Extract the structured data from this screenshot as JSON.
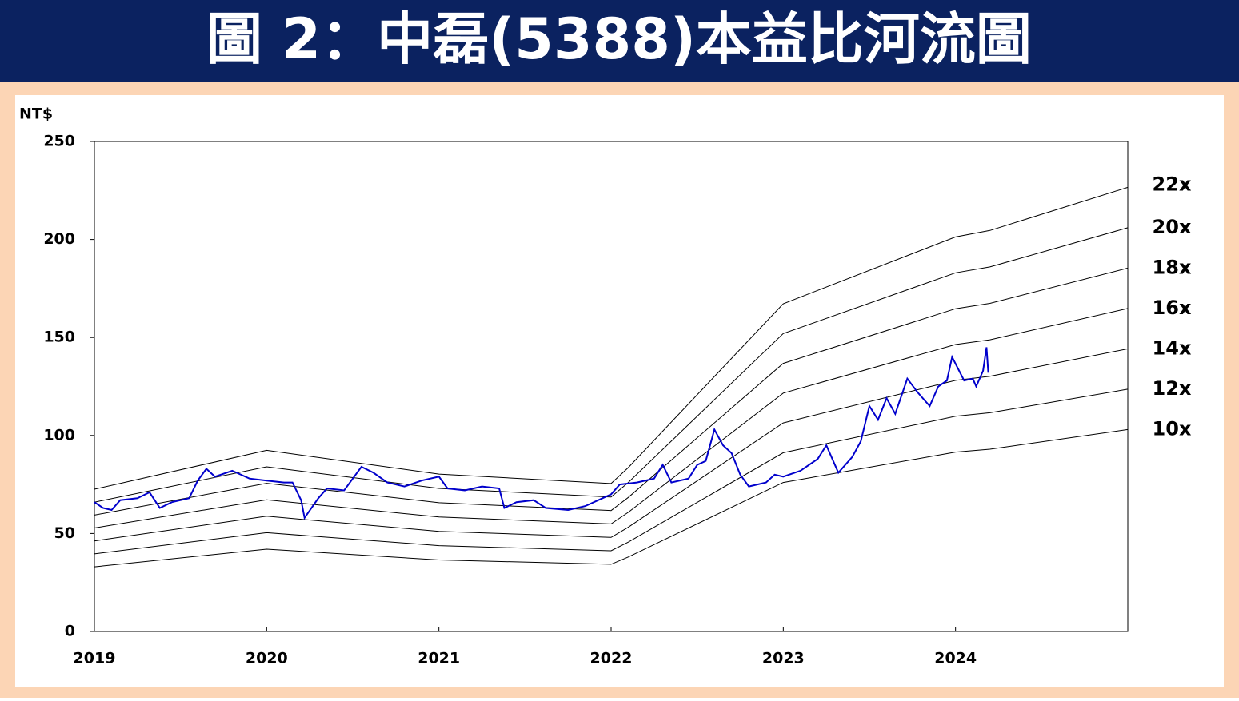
{
  "chart_data": {
    "type": "line",
    "title": "圖 2：中磊(5388)本益比河流圖",
    "y_label": "NT$",
    "xlim": [
      2019,
      2025
    ],
    "xticks": [
      2019,
      2020,
      2021,
      2022,
      2023,
      2024
    ],
    "ylim": [
      0,
      250
    ],
    "yticks": [
      0,
      50,
      100,
      150,
      200,
      250
    ],
    "series": [
      {
        "color": "#0000cc",
        "x": [
          2019.0,
          2019.05,
          2019.1,
          2019.15,
          2019.25,
          2019.32,
          2019.38,
          2019.45,
          2019.55,
          2019.6,
          2019.65,
          2019.7,
          2019.8,
          2019.9,
          2020.0,
          2020.1,
          2020.15,
          2020.2,
          2020.22,
          2020.3,
          2020.35,
          2020.45,
          2020.5,
          2020.55,
          2020.62,
          2020.7,
          2020.8,
          2020.9,
          2021.0,
          2021.05,
          2021.15,
          2021.25,
          2021.35,
          2021.38,
          2021.45,
          2021.55,
          2021.62,
          2021.75,
          2021.85,
          2021.95,
          2022.0,
          2022.05,
          2022.15,
          2022.25,
          2022.3,
          2022.35,
          2022.45,
          2022.5,
          2022.55,
          2022.6,
          2022.65,
          2022.7,
          2022.75,
          2022.8,
          2022.9,
          2022.95,
          2023.0,
          2023.1,
          2023.2,
          2023.25,
          2023.32,
          2023.4,
          2023.45,
          2023.5,
          2023.55,
          2023.6,
          2023.65,
          2023.72,
          2023.78,
          2023.85,
          2023.9,
          2023.95,
          2023.98,
          2024.05,
          2024.1,
          2024.12,
          2024.16,
          2024.18,
          2024.19
        ],
        "values": [
          66,
          63,
          62,
          67,
          68,
          71,
          63,
          66,
          68,
          77,
          83,
          79,
          82,
          78,
          77,
          76,
          76,
          67,
          58,
          68,
          73,
          72,
          78,
          84,
          81,
          76,
          74,
          77,
          79,
          73,
          72,
          74,
          73,
          63,
          66,
          67,
          63,
          62,
          64,
          68,
          70,
          75,
          76,
          78,
          85,
          76,
          78,
          85,
          87,
          103,
          95,
          91,
          80,
          74,
          76,
          80,
          79,
          82,
          88,
          95,
          81,
          89,
          97,
          115,
          108,
          119,
          111,
          129,
          122,
          115,
          125,
          128,
          140,
          128,
          129,
          125,
          133,
          145,
          132
        ]
      },
      {
        "name": "22x",
        "color": "#000000",
        "x": [
          2019,
          2020,
          2021,
          2022,
          2022.1,
          2023,
          2024,
          2024.2,
          2025
        ],
        "values": [
          72.6,
          92.4,
          80.3,
          75.5,
          83.6,
          167.2,
          201.3,
          204.6,
          226.6
        ]
      },
      {
        "name": "20x",
        "color": "#000000",
        "x": [
          2019,
          2020,
          2021,
          2022,
          2022.1,
          2023,
          2024,
          2024.2,
          2025
        ],
        "values": [
          66,
          84,
          73,
          68.6,
          76,
          152,
          183,
          186,
          206
        ]
      },
      {
        "name": "18x",
        "color": "#000000",
        "x": [
          2019,
          2020,
          2021,
          2022,
          2022.1,
          2023,
          2024,
          2024.2,
          2025
        ],
        "values": [
          59.4,
          75.6,
          65.7,
          61.7,
          68.4,
          136.8,
          164.7,
          167.4,
          185.4
        ]
      },
      {
        "name": "16x",
        "color": "#000000",
        "x": [
          2019,
          2020,
          2021,
          2022,
          2022.1,
          2023,
          2024,
          2024.2,
          2025
        ],
        "values": [
          52.8,
          67.2,
          58.4,
          54.9,
          60.8,
          121.6,
          146.4,
          148.8,
          164.8
        ]
      },
      {
        "name": "14x",
        "color": "#000000",
        "x": [
          2019,
          2020,
          2021,
          2022,
          2022.1,
          2023,
          2024,
          2024.2,
          2025
        ],
        "values": [
          46.2,
          58.8,
          51.1,
          48,
          53.2,
          106.4,
          128.1,
          130.2,
          144.2
        ]
      },
      {
        "name": "12x",
        "color": "#000000",
        "x": [
          2019,
          2020,
          2021,
          2022,
          2022.1,
          2023,
          2024,
          2024.2,
          2025
        ],
        "values": [
          39.6,
          50.4,
          43.8,
          41.2,
          45.6,
          91.2,
          109.8,
          111.6,
          123.6
        ]
      },
      {
        "name": "10x",
        "color": "#000000",
        "x": [
          2019,
          2020,
          2021,
          2022,
          2022.1,
          2023,
          2024,
          2024.2,
          2025
        ],
        "values": [
          33,
          42,
          36.5,
          34.3,
          38,
          76,
          91.5,
          93,
          103
        ]
      }
    ]
  }
}
